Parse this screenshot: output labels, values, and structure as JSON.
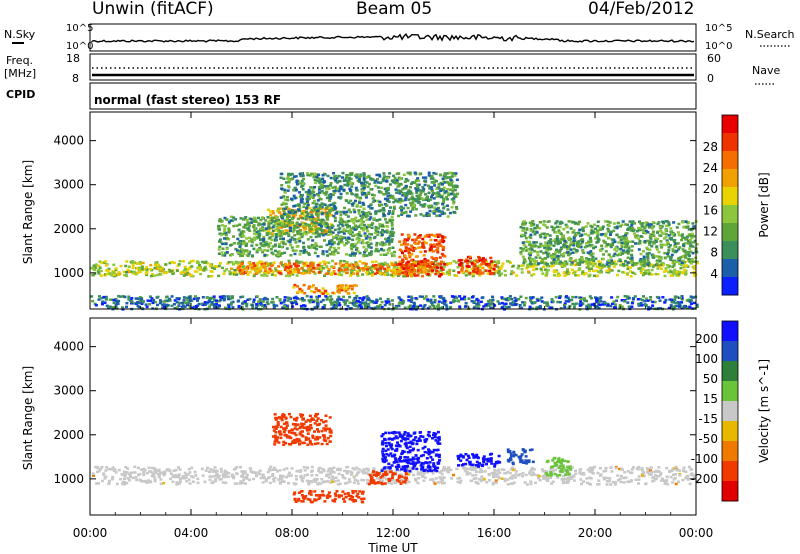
{
  "header": {
    "station": "Unwin (fitACF)",
    "beam": "Beam 05",
    "date": "04/Feb/2012"
  },
  "strip": {
    "nsky_label": "N.Sky",
    "nsearch_label": "N.Search",
    "freq_label_1": "Freq.",
    "freq_label_2": "[MHz]",
    "nave_label": "Nave",
    "cpid_label": "CPID",
    "cpid_value": "normal (fast stereo) 153 RF",
    "noise_ticks_left": [
      "10^5",
      "10^0"
    ],
    "noise_ticks_right": [
      "10^5",
      "10^0"
    ],
    "freq_ticks": [
      "18",
      "8"
    ],
    "nave_ticks": [
      "60",
      "0"
    ]
  },
  "chart_data": [
    {
      "type": "heatmap",
      "name": "power",
      "xlabel": "",
      "ylabel": "Slant Range [km]",
      "x_ticks": [
        "00:00",
        "04:00",
        "08:00",
        "12:00",
        "16:00",
        "20:00",
        "00:00"
      ],
      "y_ticks": [
        "1000",
        "2000",
        "3000",
        "4000"
      ],
      "ylim": [
        180,
        4650
      ],
      "xlim_hours": [
        0,
        24
      ],
      "colorbar": {
        "label": "Power [dB]",
        "ticks": [
          "4",
          "8",
          "12",
          "16",
          "20",
          "24",
          "28"
        ],
        "colors": [
          "#0b20ff",
          "#1a5fa8",
          "#3b8f5a",
          "#5fa63a",
          "#8cc63c",
          "#e8d200",
          "#f0a000",
          "#f46e00",
          "#ee3200",
          "#e80000"
        ]
      },
      "regions": [
        {
          "t0": 0.0,
          "t1": 24.0,
          "r0": 950,
          "r1": 1300,
          "v": 0.45
        },
        {
          "t0": 5.5,
          "t1": 13.5,
          "r0": 1000,
          "r1": 1250,
          "v": 0.75
        },
        {
          "t0": 12.2,
          "t1": 14.0,
          "r0": 950,
          "r1": 1900,
          "v": 0.85
        },
        {
          "t0": 14.5,
          "t1": 16.0,
          "r0": 1000,
          "r1": 1400,
          "v": 0.9
        },
        {
          "t0": 8.0,
          "t1": 10.5,
          "r0": 550,
          "r1": 750,
          "v": 0.7
        },
        {
          "t0": 7.0,
          "t1": 9.5,
          "r0": 1900,
          "r1": 2500,
          "v": 0.65
        },
        {
          "t0": 5.0,
          "t1": 12.0,
          "r0": 1400,
          "r1": 2300,
          "v": 0.3
        },
        {
          "t0": 7.5,
          "t1": 14.5,
          "r0": 2300,
          "r1": 3300,
          "v": 0.25
        },
        {
          "t0": 17.0,
          "t1": 24.0,
          "r0": 1200,
          "r1": 2200,
          "v": 0.3
        },
        {
          "t0": 0.0,
          "t1": 24.0,
          "r0": 200,
          "r1": 500,
          "v": 0.15
        }
      ]
    },
    {
      "type": "heatmap",
      "name": "velocity",
      "xlabel": "Time UT",
      "ylabel": "Slant Range [km]",
      "x_ticks": [
        "00:00",
        "04:00",
        "08:00",
        "12:00",
        "16:00",
        "20:00",
        "00:00"
      ],
      "y_ticks": [
        "1000",
        "2000",
        "3000",
        "4000"
      ],
      "ylim": [
        180,
        4650
      ],
      "xlim_hours": [
        0,
        24
      ],
      "colorbar": {
        "label": "Velocity [m s^-1]",
        "ticks": [
          "200",
          "100",
          "50",
          "15",
          "-15",
          "-50",
          "-100",
          "-200"
        ],
        "colors": [
          "#1010ff",
          "#1f4fbf",
          "#2e7f3a",
          "#6ac43a",
          "#c8c8c8",
          "#e8b800",
          "#f07a00",
          "#f03a00",
          "#e00000"
        ]
      },
      "regions": [
        {
          "t0": 0.0,
          "t1": 24.0,
          "r0": 900,
          "r1": 1300,
          "v": "ground"
        },
        {
          "t0": 7.2,
          "t1": 9.5,
          "r0": 1800,
          "r1": 2500,
          "v": -200
        },
        {
          "t0": 8.0,
          "t1": 10.8,
          "r0": 500,
          "r1": 750,
          "v": -150
        },
        {
          "t0": 11.0,
          "t1": 12.5,
          "r0": 900,
          "r1": 1200,
          "v": -200
        },
        {
          "t0": 11.5,
          "t1": 13.8,
          "r0": 1200,
          "r1": 2100,
          "v": 200
        },
        {
          "t0": 14.5,
          "t1": 16.2,
          "r0": 1300,
          "r1": 1600,
          "v": 200
        },
        {
          "t0": 16.5,
          "t1": 17.5,
          "r0": 1350,
          "r1": 1700,
          "v": 120
        },
        {
          "t0": 18.0,
          "t1": 19.0,
          "r0": 1100,
          "r1": 1500,
          "v": 40
        }
      ]
    }
  ]
}
